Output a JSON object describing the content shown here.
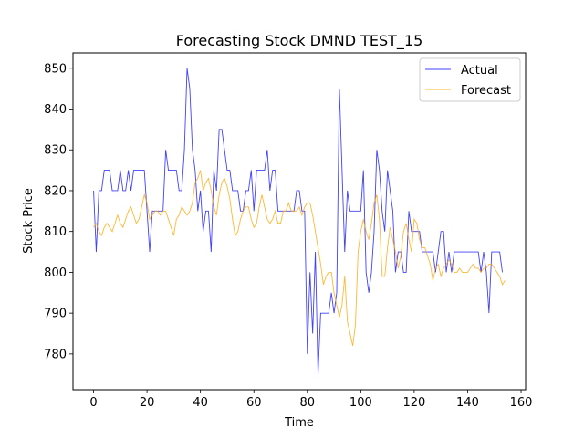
{
  "chart_data": {
    "type": "line",
    "title": "Forecasting Stock DMND TEST_15",
    "xlabel": "Time",
    "ylabel": "Stock Price",
    "xlim": [
      -7.7,
      161.7
    ],
    "ylim": [
      771.25,
      853.75
    ],
    "xticks": [
      0,
      20,
      40,
      60,
      80,
      100,
      120,
      140,
      160
    ],
    "yticks": [
      780,
      790,
      800,
      810,
      820,
      830,
      840,
      850
    ],
    "grid": false,
    "legend_position": "top-right",
    "series": [
      {
        "name": "Actual",
        "color": "#0000ff",
        "values": [
          820,
          805,
          820,
          820,
          825,
          825,
          825,
          820,
          820,
          820,
          825,
          820,
          820,
          825,
          820,
          825,
          825,
          825,
          825,
          825,
          815,
          805,
          815,
          815,
          815,
          815,
          815,
          830,
          825,
          825,
          825,
          825,
          820,
          820,
          830,
          850,
          845,
          830,
          825,
          815,
          820,
          810,
          815,
          815,
          805,
          825,
          820,
          835,
          835,
          830,
          825,
          825,
          820,
          820,
          820,
          815,
          815,
          820,
          820,
          825,
          815,
          825,
          825,
          825,
          825,
          830,
          820,
          825,
          825,
          815,
          815,
          815,
          815,
          815,
          815,
          815,
          820,
          820,
          815,
          815,
          780,
          800,
          785,
          805,
          775,
          790,
          790,
          790,
          790,
          795,
          790,
          795,
          845,
          825,
          805,
          820,
          815,
          815,
          815,
          815,
          815,
          825,
          800,
          795,
          800,
          810,
          830,
          825,
          815,
          810,
          825,
          820,
          815,
          800,
          805,
          805,
          800,
          800,
          815,
          810,
          810,
          810,
          810,
          805,
          805,
          805,
          805,
          805,
          800,
          805,
          810,
          810,
          800,
          805,
          800,
          805,
          805,
          805,
          805,
          805,
          805,
          805,
          805,
          805,
          805,
          800,
          805,
          800,
          790,
          805,
          805,
          805,
          805,
          800
        ]
      },
      {
        "name": "Forecast",
        "color": "#ffa500",
        "values": [
          811,
          812,
          810,
          809,
          811,
          812,
          811,
          810,
          812,
          814,
          812,
          811,
          813,
          815,
          816,
          814,
          812,
          813,
          816,
          819,
          817,
          813,
          814,
          815,
          815,
          814,
          815,
          815,
          813,
          811,
          809,
          813,
          814,
          816,
          815,
          814,
          815,
          817,
          822,
          823,
          825,
          820,
          822,
          823,
          820,
          816,
          814,
          819,
          822,
          823,
          821,
          818,
          813,
          809,
          810,
          813,
          815,
          816,
          816,
          813,
          811,
          812,
          816,
          819,
          816,
          813,
          812,
          813,
          815,
          812,
          812,
          815,
          815,
          817,
          815,
          815,
          815,
          816,
          814,
          816,
          817,
          817,
          814,
          810,
          806,
          802,
          797,
          799,
          800,
          800,
          795,
          792,
          789,
          792,
          799,
          788,
          785,
          782,
          787,
          805,
          810,
          813,
          810,
          808,
          812,
          817,
          819,
          813,
          799,
          799,
          806,
          811,
          808,
          805,
          801,
          804,
          810,
          812,
          808,
          805,
          813,
          812,
          808,
          806,
          806,
          804,
          802,
          798,
          801,
          802,
          799,
          801,
          802,
          803,
          802,
          800,
          800,
          801,
          800,
          800,
          800,
          801,
          802,
          801,
          801,
          800,
          801,
          801,
          802,
          802,
          801,
          800,
          799,
          797,
          798
        ]
      }
    ]
  }
}
